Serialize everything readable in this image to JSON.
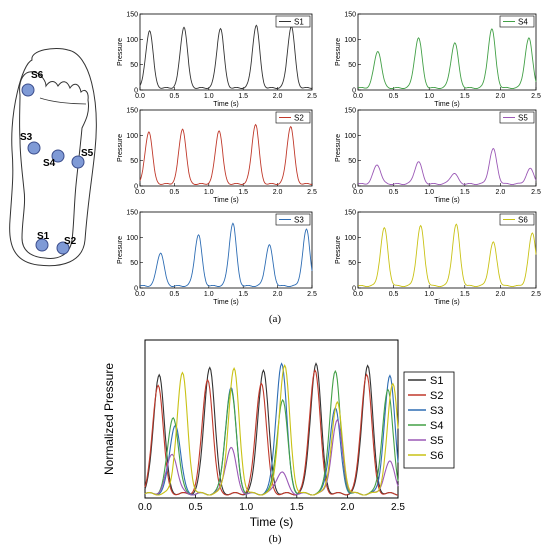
{
  "figure": {
    "caption_a": "(a)",
    "caption_b": "(b)"
  },
  "foot_sensors": [
    "S6",
    "S3",
    "S4",
    "S5",
    "S1",
    "S2"
  ],
  "colors": {
    "S1": "#333333",
    "S2": "#c0392b",
    "S3": "#2e6db4",
    "S4": "#43a047",
    "S5": "#9b59b6",
    "S6": "#c9c216",
    "sensor_fill": "#7f9ad6"
  },
  "chart_data": [
    {
      "type": "line",
      "panel": "a",
      "legend": "S1",
      "xlabel": "Time (s)",
      "ylabel": "Pressure",
      "xlim": [
        0,
        2.5
      ],
      "ylim": [
        0,
        150
      ],
      "xticks": [
        "0.0",
        "0.5",
        "1.0",
        "1.5",
        "2.0",
        "2.5"
      ],
      "yticks": [
        "0",
        "50",
        "100",
        "150"
      ],
      "peaks": [
        [
          0.14,
          118
        ],
        [
          0.64,
          125
        ],
        [
          1.17,
          122
        ],
        [
          1.69,
          128
        ],
        [
          2.2,
          126
        ]
      ]
    },
    {
      "type": "line",
      "panel": "a",
      "legend": "S4",
      "xlabel": "Time (s)",
      "ylabel": "Pressure",
      "xlim": [
        0,
        2.5
      ],
      "ylim": [
        0,
        150
      ],
      "xticks": [
        "0.0",
        "0.5",
        "1.0",
        "1.5",
        "2.0",
        "2.5"
      ],
      "yticks": [
        "0",
        "50",
        "100",
        "150"
      ],
      "peaks": [
        [
          0.28,
          77
        ],
        [
          0.85,
          103
        ],
        [
          1.36,
          93
        ],
        [
          1.88,
          120
        ],
        [
          2.4,
          102
        ]
      ]
    },
    {
      "type": "line",
      "panel": "a",
      "legend": "S2",
      "xlabel": "Time (s)",
      "ylabel": "Pressure",
      "xlim": [
        0,
        2.5
      ],
      "ylim": [
        0,
        150
      ],
      "xticks": [
        "0.0",
        "0.5",
        "1.0",
        "1.5",
        "2.0",
        "2.5"
      ],
      "yticks": [
        "0",
        "50",
        "100",
        "150"
      ],
      "peaks": [
        [
          0.13,
          108
        ],
        [
          0.62,
          113
        ],
        [
          1.15,
          110
        ],
        [
          1.68,
          122
        ],
        [
          2.19,
          118
        ]
      ]
    },
    {
      "type": "line",
      "panel": "a",
      "legend": "S5",
      "xlabel": "Time (s)",
      "ylabel": "Pressure",
      "xlim": [
        0,
        2.5
      ],
      "ylim": [
        0,
        150
      ],
      "xticks": [
        "0.0",
        "0.5",
        "1.0",
        "1.5",
        "2.0",
        "2.5"
      ],
      "yticks": [
        "0",
        "50",
        "100",
        "150"
      ],
      "peaks": [
        [
          0.27,
          42
        ],
        [
          0.85,
          48
        ],
        [
          1.35,
          25
        ],
        [
          1.9,
          73
        ],
        [
          2.42,
          34
        ]
      ]
    },
    {
      "type": "line",
      "panel": "a",
      "legend": "S3",
      "xlabel": "Time (s)",
      "ylabel": "Pressure",
      "xlim": [
        0,
        2.5
      ],
      "ylim": [
        0,
        150
      ],
      "xticks": [
        "0.0",
        "0.5",
        "1.0",
        "1.5",
        "2.0",
        "2.5"
      ],
      "yticks": [
        "0",
        "50",
        "100",
        "150"
      ],
      "peaks": [
        [
          0.3,
          70
        ],
        [
          0.85,
          105
        ],
        [
          1.35,
          128
        ],
        [
          1.88,
          85
        ],
        [
          2.42,
          115
        ]
      ]
    },
    {
      "type": "line",
      "panel": "a",
      "legend": "S6",
      "xlabel": "Time (s)",
      "ylabel": "Pressure",
      "xlim": [
        0,
        2.5
      ],
      "ylim": [
        0,
        150
      ],
      "xticks": [
        "0.0",
        "0.5",
        "1.0",
        "1.5",
        "2.0",
        "2.5"
      ],
      "yticks": [
        "0",
        "50",
        "100",
        "150"
      ],
      "peaks": [
        [
          0.37,
          118
        ],
        [
          0.88,
          122
        ],
        [
          1.38,
          125
        ],
        [
          1.9,
          90
        ],
        [
          2.45,
          108
        ]
      ]
    },
    {
      "type": "line",
      "panel": "b",
      "xlabel": "Time (s)",
      "ylabel": "Normalized Pressure",
      "xlim": [
        0,
        2.5
      ],
      "ylim": [
        0,
        150
      ],
      "xticks": [
        "0.0",
        "0.5",
        "1.0",
        "1.5",
        "2.0",
        "2.5"
      ],
      "yticks": [],
      "series": [
        {
          "name": "S1",
          "peaks": [
            [
              0.14,
              118
            ],
            [
              0.64,
              125
            ],
            [
              1.17,
              122
            ],
            [
              1.69,
              128
            ],
            [
              2.2,
              126
            ]
          ]
        },
        {
          "name": "S2",
          "peaks": [
            [
              0.13,
              108
            ],
            [
              0.62,
              113
            ],
            [
              1.15,
              110
            ],
            [
              1.68,
              122
            ],
            [
              2.19,
              118
            ]
          ]
        },
        {
          "name": "S3",
          "peaks": [
            [
              0.3,
              70
            ],
            [
              0.85,
              105
            ],
            [
              1.35,
              128
            ],
            [
              1.88,
              85
            ],
            [
              2.42,
              115
            ]
          ]
        },
        {
          "name": "S4",
          "peaks": [
            [
              0.28,
              77
            ],
            [
              0.85,
              103
            ],
            [
              1.36,
              93
            ],
            [
              1.88,
              120
            ],
            [
              2.4,
              102
            ]
          ]
        },
        {
          "name": "S5",
          "peaks": [
            [
              0.27,
              42
            ],
            [
              0.85,
              48
            ],
            [
              1.35,
              25
            ],
            [
              1.9,
              73
            ],
            [
              2.42,
              34
            ]
          ]
        },
        {
          "name": "S6",
          "peaks": [
            [
              0.37,
              118
            ],
            [
              0.88,
              122
            ],
            [
              1.38,
              125
            ],
            [
              1.9,
              90
            ],
            [
              2.45,
              108
            ]
          ]
        }
      ]
    }
  ]
}
